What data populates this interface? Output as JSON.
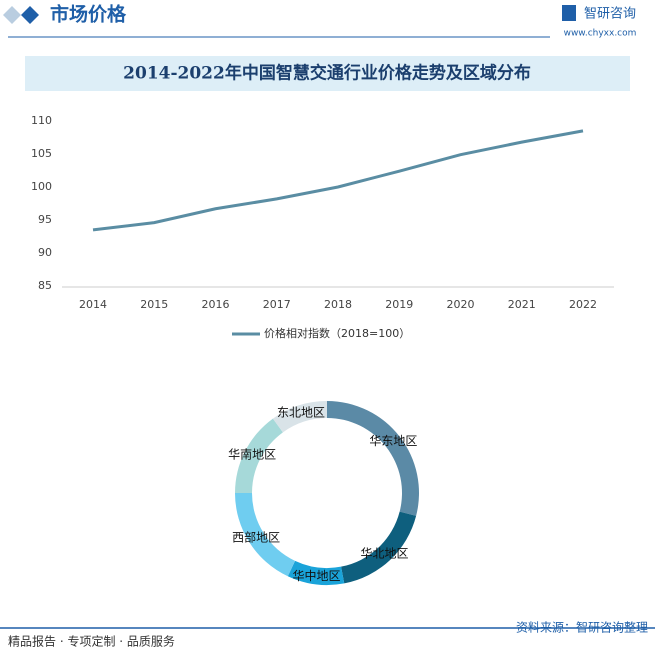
{
  "header": {
    "title": "市场价格",
    "logo": "智研咨询",
    "url": "www.chyxx.com"
  },
  "footer": {
    "slogan": "精品报告 · 专项定制 · 品质服务",
    "source": "资料来源：智研咨询整理"
  },
  "chart_data": [
    {
      "type": "line",
      "title": "2014-2022年中国智慧交通行业价格走势及区域分布",
      "x": [
        2014,
        2015,
        2016,
        2017,
        2018,
        2019,
        2020,
        2021,
        2022
      ],
      "xlim": [
        2014,
        2022
      ],
      "xticks": [
        2014,
        2015,
        2016,
        2017,
        2018,
        2019,
        2020,
        2021,
        2022
      ],
      "ylim": [
        85,
        110
      ],
      "yticks": [
        85,
        90,
        95,
        100,
        105,
        110
      ],
      "grid": false,
      "series": [
        {
          "name": "价格相对指数（2018=100）",
          "color": "#5a8da3",
          "values": [
            93.5,
            94.6,
            96.7,
            98.2,
            100,
            102.4,
            104.9,
            106.8,
            108.5
          ]
        }
      ]
    },
    {
      "type": "pie",
      "donut": true,
      "categories": [
        "华东地区",
        "华北地区",
        "华中地区",
        "西部地区",
        "华南地区",
        "东北地区"
      ],
      "values": [
        29,
        18,
        10,
        18,
        15,
        10
      ],
      "colors": [
        "#5b8aa6",
        "#0e5f7e",
        "#1aa3d9",
        "#6fcdf0",
        "#a6d9d9",
        "#d9e3e8"
      ]
    }
  ]
}
